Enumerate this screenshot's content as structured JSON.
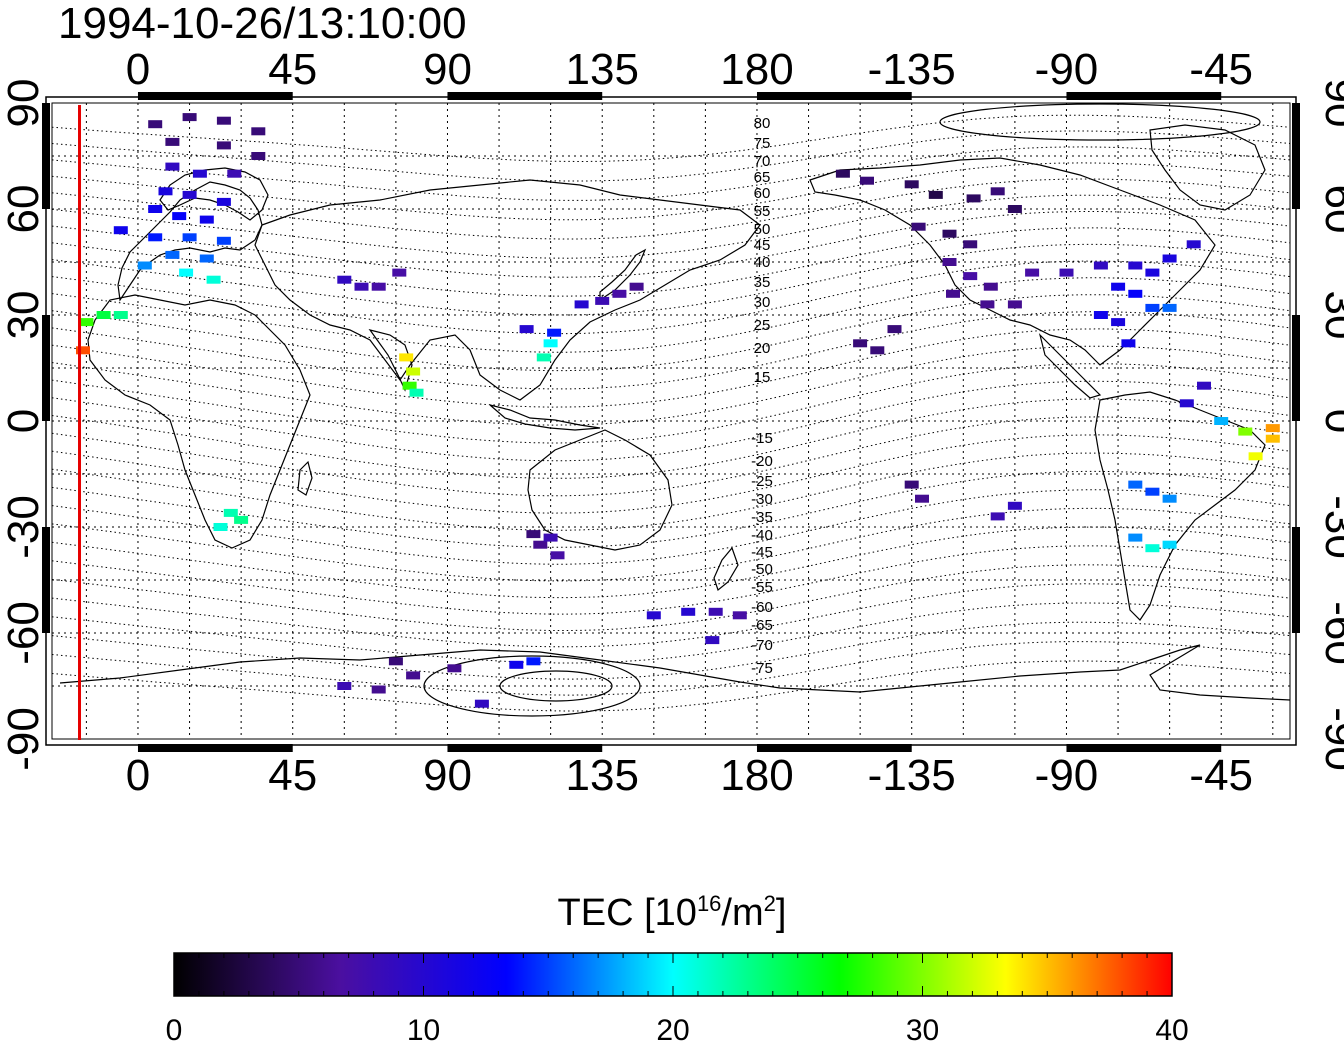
{
  "title": "1994-10-26/13:10:00",
  "axes": {
    "x_ticks": [
      {
        "lon": 0,
        "label": "0"
      },
      {
        "lon": 45,
        "label": "45"
      },
      {
        "lon": 90,
        "label": "90"
      },
      {
        "lon": 135,
        "label": "135"
      },
      {
        "lon": 180,
        "label": "180"
      },
      {
        "lon": 225,
        "label": "-135"
      },
      {
        "lon": 270,
        "label": "-90"
      },
      {
        "lon": 315,
        "label": "-45"
      }
    ],
    "y_ticks": [
      {
        "lat": 90,
        "label": "90"
      },
      {
        "lat": 60,
        "label": "60"
      },
      {
        "lat": 30,
        "label": "30"
      },
      {
        "lat": 0,
        "label": "0"
      },
      {
        "lat": -30,
        "label": "-30"
      },
      {
        "lat": -60,
        "label": "-60"
      },
      {
        "lat": -90,
        "label": "-90"
      }
    ],
    "lon_range": [
      -25,
      335
    ],
    "lat_range": [
      -90,
      90
    ],
    "grid": true
  },
  "terminator_longitude": -17,
  "colorbar": {
    "title": "TEC  [10",
    "title_sup": "16",
    "title_unit": "/m",
    "title_unit_sup": "2",
    "title_close": "]",
    "min": 0,
    "max": 40,
    "tick_labels": [
      "0",
      "10",
      "20",
      "30",
      "40"
    ],
    "colormap": [
      "#000000",
      "#4b0fa0",
      "#0000ff",
      "#00ffff",
      "#00ff00",
      "#ffff00",
      "#ff0000"
    ]
  },
  "contour_labels": [
    "80",
    "75",
    "70",
    "65",
    "60",
    "55",
    "50",
    "45",
    "40",
    "35",
    "30",
    "25",
    "20",
    "15",
    "-15",
    "-20",
    "-25",
    "-30",
    "-35",
    "-40",
    "-45",
    "-50",
    "-55",
    "-60",
    "-65",
    "-70",
    "-75"
  ],
  "chart_data": {
    "type": "scatter",
    "title": "1994-10-26/13:10:00",
    "xlabel": "",
    "ylabel": "",
    "xlim": [
      -25,
      335
    ],
    "ylim": [
      -90,
      90
    ],
    "value_label": "TEC [10^16/m^2]",
    "value_range": [
      0,
      40
    ],
    "points": [
      {
        "lon": 5,
        "lat": 84,
        "tec": 5
      },
      {
        "lon": 15,
        "lat": 86,
        "tec": 5
      },
      {
        "lon": 25,
        "lat": 85,
        "tec": 5
      },
      {
        "lon": 35,
        "lat": 82,
        "tec": 5
      },
      {
        "lon": 10,
        "lat": 79,
        "tec": 5
      },
      {
        "lon": 25,
        "lat": 78,
        "tec": 5
      },
      {
        "lon": 35,
        "lat": 75,
        "tec": 5
      },
      {
        "lon": 10,
        "lat": 72,
        "tec": 9
      },
      {
        "lon": 18,
        "lat": 70,
        "tec": 10
      },
      {
        "lon": 28,
        "lat": 70,
        "tec": 8
      },
      {
        "lon": 8,
        "lat": 65,
        "tec": 11
      },
      {
        "lon": 15,
        "lat": 64,
        "tec": 10
      },
      {
        "lon": 25,
        "lat": 62,
        "tec": 11
      },
      {
        "lon": 5,
        "lat": 60,
        "tec": 12
      },
      {
        "lon": 12,
        "lat": 58,
        "tec": 13
      },
      {
        "lon": 20,
        "lat": 57,
        "tec": 12
      },
      {
        "lon": -5,
        "lat": 54,
        "tec": 12
      },
      {
        "lon": 5,
        "lat": 52,
        "tec": 14
      },
      {
        "lon": 15,
        "lat": 52,
        "tec": 15
      },
      {
        "lon": 25,
        "lat": 51,
        "tec": 15
      },
      {
        "lon": 10,
        "lat": 47,
        "tec": 16
      },
      {
        "lon": 20,
        "lat": 46,
        "tec": 16
      },
      {
        "lon": 2,
        "lat": 44,
        "tec": 17
      },
      {
        "lon": 14,
        "lat": 42,
        "tec": 20
      },
      {
        "lon": 22,
        "lat": 40,
        "tec": 21
      },
      {
        "lon": -10,
        "lat": 30,
        "tec": 25
      },
      {
        "lon": -5,
        "lat": 30,
        "tec": 23
      },
      {
        "lon": -15,
        "lat": 28,
        "tec": 28
      },
      {
        "lon": -16,
        "lat": 20,
        "tec": 38
      },
      {
        "lon": 60,
        "lat": 40,
        "tec": 9
      },
      {
        "lon": 65,
        "lat": 38,
        "tec": 8
      },
      {
        "lon": 70,
        "lat": 38,
        "tec": 7
      },
      {
        "lon": 76,
        "lat": 42,
        "tec": 7
      },
      {
        "lon": 78,
        "lat": 18,
        "tec": 34
      },
      {
        "lon": 80,
        "lat": 14,
        "tec": 32
      },
      {
        "lon": 79,
        "lat": 10,
        "tec": 28
      },
      {
        "lon": 81,
        "lat": 8,
        "tec": 22
      },
      {
        "lon": 113,
        "lat": 26,
        "tec": 10
      },
      {
        "lon": 121,
        "lat": 25,
        "tec": 14
      },
      {
        "lon": 120,
        "lat": 22,
        "tec": 20
      },
      {
        "lon": 118,
        "lat": 18,
        "tec": 22
      },
      {
        "lon": 129,
        "lat": 33,
        "tec": 10
      },
      {
        "lon": 135,
        "lat": 34,
        "tec": 8
      },
      {
        "lon": 140,
        "lat": 36,
        "tec": 7
      },
      {
        "lon": 145,
        "lat": 38,
        "tec": 6
      },
      {
        "lon": 115,
        "lat": -32,
        "tec": 5
      },
      {
        "lon": 117,
        "lat": -35,
        "tec": 6
      },
      {
        "lon": 120,
        "lat": -33,
        "tec": 8
      },
      {
        "lon": 122,
        "lat": -38,
        "tec": 7
      },
      {
        "lon": 27,
        "lat": -26,
        "tec": 22
      },
      {
        "lon": 30,
        "lat": -28,
        "tec": 23
      },
      {
        "lon": 24,
        "lat": -30,
        "tec": 21
      },
      {
        "lon": 150,
        "lat": -55,
        "tec": 10
      },
      {
        "lon": 160,
        "lat": -54,
        "tec": 10
      },
      {
        "lon": 168,
        "lat": -54,
        "tec": 8
      },
      {
        "lon": 175,
        "lat": -55,
        "tec": 7
      },
      {
        "lon": 167,
        "lat": -62,
        "tec": 9
      },
      {
        "lon": 60,
        "lat": -75,
        "tec": 8
      },
      {
        "lon": 70,
        "lat": -76,
        "tec": 6
      },
      {
        "lon": 80,
        "lat": -72,
        "tec": 6
      },
      {
        "lon": 92,
        "lat": -70,
        "tec": 6
      },
      {
        "lon": 110,
        "lat": -69,
        "tec": 12
      },
      {
        "lon": 115,
        "lat": -68,
        "tec": 14
      },
      {
        "lon": 100,
        "lat": -80,
        "tec": 9
      },
      {
        "lon": 75,
        "lat": -68,
        "tec": 5
      },
      {
        "lon": 205,
        "lat": 70,
        "tec": 4
      },
      {
        "lon": 212,
        "lat": 68,
        "tec": 5
      },
      {
        "lon": 225,
        "lat": 67,
        "tec": 4
      },
      {
        "lon": 232,
        "lat": 64,
        "tec": 3
      },
      {
        "lon": 243,
        "lat": 63,
        "tec": 4
      },
      {
        "lon": 250,
        "lat": 65,
        "tec": 5
      },
      {
        "lon": 255,
        "lat": 60,
        "tec": 4
      },
      {
        "lon": 227,
        "lat": 55,
        "tec": 5
      },
      {
        "lon": 236,
        "lat": 53,
        "tec": 4
      },
      {
        "lon": 242,
        "lat": 50,
        "tec": 5
      },
      {
        "lon": 236,
        "lat": 45,
        "tec": 6
      },
      {
        "lon": 242,
        "lat": 41,
        "tec": 7
      },
      {
        "lon": 248,
        "lat": 38,
        "tec": 6
      },
      {
        "lon": 237,
        "lat": 36,
        "tec": 6
      },
      {
        "lon": 247,
        "lat": 33,
        "tec": 6
      },
      {
        "lon": 255,
        "lat": 33,
        "tec": 6
      },
      {
        "lon": 260,
        "lat": 42,
        "tec": 7
      },
      {
        "lon": 270,
        "lat": 42,
        "tec": 8
      },
      {
        "lon": 280,
        "lat": 44,
        "tec": 9
      },
      {
        "lon": 290,
        "lat": 44,
        "tec": 10
      },
      {
        "lon": 295,
        "lat": 42,
        "tec": 11
      },
      {
        "lon": 300,
        "lat": 46,
        "tec": 11
      },
      {
        "lon": 307,
        "lat": 50,
        "tec": 10
      },
      {
        "lon": 285,
        "lat": 38,
        "tec": 12
      },
      {
        "lon": 290,
        "lat": 36,
        "tec": 13
      },
      {
        "lon": 295,
        "lat": 32,
        "tec": 15
      },
      {
        "lon": 300,
        "lat": 32,
        "tec": 16
      },
      {
        "lon": 280,
        "lat": 30,
        "tec": 12
      },
      {
        "lon": 285,
        "lat": 28,
        "tec": 11
      },
      {
        "lon": 288,
        "lat": 22,
        "tec": 12
      },
      {
        "lon": 210,
        "lat": 22,
        "tec": 5
      },
      {
        "lon": 215,
        "lat": 20,
        "tec": 5
      },
      {
        "lon": 220,
        "lat": 26,
        "tec": 5
      },
      {
        "lon": 225,
        "lat": -18,
        "tec": 5
      },
      {
        "lon": 228,
        "lat": -22,
        "tec": 6
      },
      {
        "lon": 250,
        "lat": -27,
        "tec": 8
      },
      {
        "lon": 255,
        "lat": -24,
        "tec": 9
      },
      {
        "lon": 310,
        "lat": 10,
        "tec": 9
      },
      {
        "lon": 305,
        "lat": 5,
        "tec": 10
      },
      {
        "lon": 315,
        "lat": 0,
        "tec": 18
      },
      {
        "lon": 322,
        "lat": -3,
        "tec": 30
      },
      {
        "lon": 330,
        "lat": -5,
        "tec": 35
      },
      {
        "lon": 325,
        "lat": -10,
        "tec": 33
      },
      {
        "lon": 330,
        "lat": -2,
        "tec": 36
      },
      {
        "lon": 290,
        "lat": -18,
        "tec": 16
      },
      {
        "lon": 295,
        "lat": -20,
        "tec": 15
      },
      {
        "lon": 300,
        "lat": -22,
        "tec": 17
      },
      {
        "lon": 290,
        "lat": -33,
        "tec": 17
      },
      {
        "lon": 295,
        "lat": -36,
        "tec": 21
      },
      {
        "lon": 300,
        "lat": -35,
        "tec": 19
      }
    ]
  }
}
